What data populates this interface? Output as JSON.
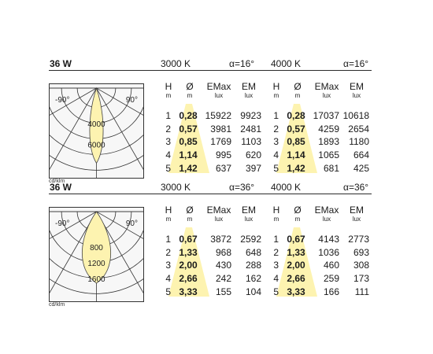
{
  "colors": {
    "highlight": "#fdf3b0",
    "line": "#222222"
  },
  "sections": [
    {
      "id": "narrow",
      "watt": "36 W",
      "ct1": "3000 K",
      "alpha1": "α=16°",
      "ct2": "4000 K",
      "alpha2": "α=16°",
      "polar": {
        "left_angle": "-90°",
        "right_angle": "90°",
        "ring_labels": [
          "4000",
          "6000"
        ],
        "unit": "cd/klm"
      },
      "columns": {
        "h": "H",
        "h_unit": "m",
        "d": "Ø",
        "d_unit": "m",
        "emax": "EMax",
        "emax_unit": "lux",
        "em": "EM",
        "em_unit": "lux"
      },
      "rows1": [
        {
          "h": "1",
          "d": "0,28",
          "emax": "15922",
          "em": "9923"
        },
        {
          "h": "2",
          "d": "0,57",
          "emax": "3981",
          "em": "2481"
        },
        {
          "h": "3",
          "d": "0,85",
          "emax": "1769",
          "em": "1103"
        },
        {
          "h": "4",
          "d": "1,14",
          "emax": "995",
          "em": "620"
        },
        {
          "h": "5",
          "d": "1,42",
          "emax": "637",
          "em": "397"
        }
      ],
      "rows2": [
        {
          "h": "1",
          "d": "0,28",
          "emax": "17037",
          "em": "10618"
        },
        {
          "h": "2",
          "d": "0,57",
          "emax": "4259",
          "em": "2654"
        },
        {
          "h": "3",
          "d": "0,85",
          "emax": "1893",
          "em": "1180"
        },
        {
          "h": "4",
          "d": "1,14",
          "emax": "1065",
          "em": "664"
        },
        {
          "h": "5",
          "d": "1,42",
          "emax": "681",
          "em": "425"
        }
      ]
    },
    {
      "id": "wide",
      "watt": "36 W",
      "ct1": "3000 K",
      "alpha1": "α=36°",
      "ct2": "4000 K",
      "alpha2": "α=36°",
      "polar": {
        "left_angle": "-90°",
        "right_angle": "90°",
        "ring_labels": [
          "800",
          "1200",
          "1600"
        ],
        "unit": "cd/klm"
      },
      "columns": {
        "h": "H",
        "h_unit": "m",
        "d": "Ø",
        "d_unit": "m",
        "emax": "EMax",
        "emax_unit": "lux",
        "em": "EM",
        "em_unit": "lux"
      },
      "rows1": [
        {
          "h": "1",
          "d": "0,67",
          "emax": "3872",
          "em": "2592"
        },
        {
          "h": "2",
          "d": "1,33",
          "emax": "968",
          "em": "648"
        },
        {
          "h": "3",
          "d": "2,00",
          "emax": "430",
          "em": "288"
        },
        {
          "h": "4",
          "d": "2,66",
          "emax": "242",
          "em": "162"
        },
        {
          "h": "5",
          "d": "3,33",
          "emax": "155",
          "em": "104"
        }
      ],
      "rows2": [
        {
          "h": "1",
          "d": "0,67",
          "emax": "4143",
          "em": "2773"
        },
        {
          "h": "2",
          "d": "1,33",
          "emax": "1036",
          "em": "693"
        },
        {
          "h": "3",
          "d": "2,00",
          "emax": "460",
          "em": "308"
        },
        {
          "h": "4",
          "d": "2,66",
          "emax": "259",
          "em": "173"
        },
        {
          "h": "5",
          "d": "3,33",
          "emax": "166",
          "em": "111"
        }
      ]
    }
  ]
}
